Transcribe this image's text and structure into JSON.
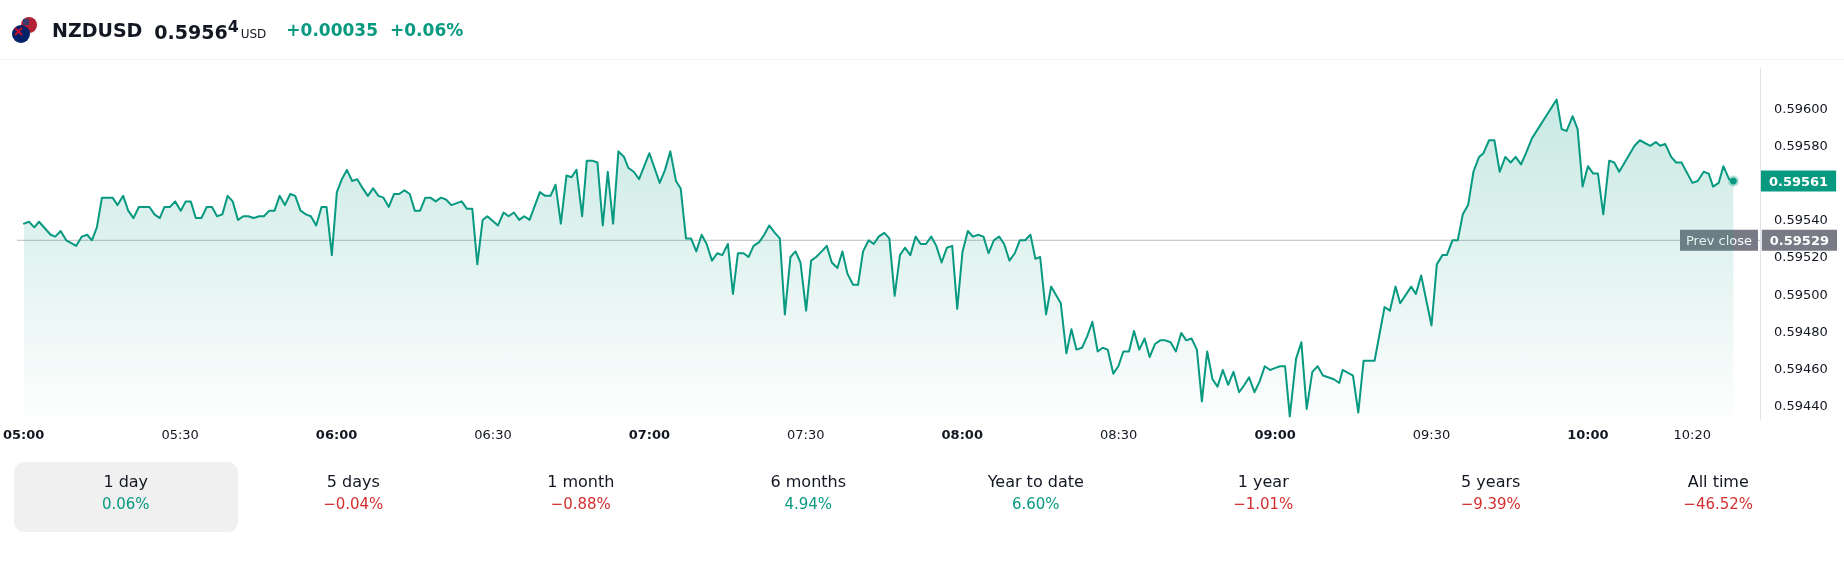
{
  "chart_data": {
    "type": "area",
    "title": "NZDUSD",
    "annotations": [
      {
        "text": "0.59561",
        "x": 10.465,
        "y": 0.59561
      },
      "0.59529",
      "0.5956$^{4}$",
      "USD",
      "+0.00035",
      "+0.06%",
      "1 day",
      "0.06%",
      "5 days",
      "−0.04%",
      "1 month",
      "−0.88%",
      "6 months",
      "4.94%",
      "Year to date",
      "6.60%",
      "1 year",
      "−1.01%",
      "5 years",
      "−9.39%",
      "All time",
      "−46.52%"
    ],
    "xlim": [
      4.98,
      10.55
    ],
    "xticks": [
      {
        "value": 5,
        "label": "05:00"
      },
      {
        "value": 5.5,
        "label": "05:30"
      },
      {
        "value": 6,
        "label": "06:00"
      },
      {
        "value": 6.5,
        "label": "06:30"
      },
      {
        "value": 7,
        "label": "07:00"
      },
      {
        "value": 7.5,
        "label": "07:30"
      },
      {
        "value": 8,
        "label": "08:00"
      },
      {
        "value": 8.5,
        "label": "08:30"
      },
      {
        "value": 9,
        "label": "09:00"
      },
      {
        "value": 9.5,
        "label": "09:30"
      },
      {
        "value": 10,
        "label": "10:00"
      },
      {
        "value": 10.3333,
        "label": "10:20"
      }
    ],
    "ylim": [
      0.59432,
      0.59622
    ],
    "yticks": [
      {
        "value": 0.5944,
        "label": "0.59440"
      },
      {
        "value": 0.5946,
        "label": "0.59460"
      },
      {
        "value": 0.5948,
        "label": "0.59480"
      },
      {
        "value": 0.595,
        "label": "0.59500"
      },
      {
        "value": 0.5952,
        "label": "0.59520"
      },
      {
        "value": 0.5954,
        "label": "0.59540"
      },
      {
        "value": 0.5958,
        "label": "0.59580"
      },
      {
        "value": 0.596,
        "label": "0.59600"
      }
    ],
    "grid": false,
    "ref_lines": [
      {
        "axis": "y",
        "value": 0.59529,
        "label": "Prev close",
        "color": "#787b86",
        "line_style": "dotted"
      }
    ],
    "series": [
      {
        "color": "#089981",
        "x": [
          5.001,
          5.017,
          5.034,
          5.049,
          5.086,
          5.101,
          5.118,
          5.136,
          5.168,
          5.186,
          5.203,
          5.218,
          5.234,
          5.25,
          5.268,
          5.284,
          5.3,
          5.318,
          5.334,
          5.351,
          5.368,
          5.386,
          5.402,
          5.418,
          5.435,
          5.45,
          5.468,
          5.484,
          5.502,
          5.518,
          5.534,
          5.55,
          5.568,
          5.585,
          5.602,
          5.618,
          5.635,
          5.652,
          5.668,
          5.685,
          5.702,
          5.718,
          5.735,
          5.752,
          5.768,
          5.785,
          5.802,
          5.818,
          5.835,
          5.852,
          5.868,
          5.885,
          5.902,
          5.918,
          5.935,
          5.952,
          5.968,
          5.985,
          6.001,
          6.017,
          6.033,
          6.05,
          6.066,
          6.084,
          6.1,
          6.117,
          6.134,
          6.15,
          6.167,
          6.184,
          6.2,
          6.217,
          6.234,
          6.25,
          6.267,
          6.284,
          6.3,
          6.317,
          6.334,
          6.35,
          6.367,
          6.4,
          6.417,
          6.434,
          6.45,
          6.467,
          6.482,
          6.516,
          6.534,
          6.55,
          6.567,
          6.584,
          6.6,
          6.617,
          6.65,
          6.667,
          6.684,
          6.7,
          6.717,
          6.735,
          6.751,
          6.767,
          6.785,
          6.8,
          6.817,
          6.834,
          6.851,
          6.867,
          6.884,
          6.901,
          6.919,
          6.933,
          6.95,
          6.967,
          7,
          7.033,
          7.05,
          7.067,
          7.085,
          7.1,
          7.117,
          7.133,
          7.15,
          7.167,
          7.183,
          7.2,
          7.217,
          7.233,
          7.251,
          7.267,
          7.283,
          7.301,
          7.317,
          7.333,
          7.351,
          7.367,
          7.383,
          7.401,
          7.417,
          7.433,
          7.451,
          7.467,
          7.483,
          7.501,
          7.517,
          7.533,
          7.551,
          7.567,
          7.583,
          7.601,
          7.617,
          7.633,
          7.651,
          7.667,
          7.683,
          7.701,
          7.717,
          7.733,
          7.751,
          7.767,
          7.784,
          7.801,
          7.817,
          7.834,
          7.851,
          7.867,
          7.884,
          7.901,
          7.917,
          7.934,
          7.951,
          7.968,
          7.984,
          8.001,
          8.018,
          8.034,
          8.051,
          8.068,
          8.084,
          8.101,
          8.118,
          8.134,
          8.151,
          8.168,
          8.184,
          8.201,
          8.218,
          8.234,
          8.249,
          8.268,
          8.284,
          8.315,
          8.333,
          8.349,
          8.365,
          8.383,
          8.399,
          8.416,
          8.433,
          8.449,
          8.465,
          8.483,
          8.499,
          8.515,
          8.533,
          8.549,
          8.566,
          8.583,
          8.599,
          8.616,
          8.633,
          8.649,
          8.666,
          8.683,
          8.7,
          8.716,
          8.733,
          8.75,
          8.766,
          8.783,
          8.8,
          8.816,
          8.833,
          8.85,
          8.867,
          8.885,
          8.902,
          8.917,
          8.934,
          8.951,
          8.967,
          8.984,
          8.999,
          9.016,
          9.032,
          9.047,
          9.067,
          9.084,
          9.101,
          9.119,
          9.136,
          9.153,
          9.188,
          9.205,
          9.216,
          9.249,
          9.266,
          9.283,
          9.318,
          9.35,
          9.367,
          9.385,
          9.4,
          9.435,
          9.45,
          9.467,
          9.5,
          9.517,
          9.535,
          9.549,
          9.567,
          9.584,
          9.6,
          9.617,
          9.634,
          9.652,
          9.666,
          9.684,
          9.701,
          9.718,
          9.736,
          9.753,
          9.769,
          9.786,
          9.802,
          9.821,
          9.9,
          9.916,
          9.932,
          9.951,
          9.967,
          9.983,
          10,
          10.017,
          10.032,
          10.049,
          10.068,
          10.084,
          10.1,
          10.149,
          10.166,
          10.199,
          10.217,
          10.231,
          10.247,
          10.266,
          10.282,
          10.299,
          10.334,
          10.351,
          10.37,
          10.386,
          10.4,
          10.418,
          10.433,
          10.451,
          10.465
        ],
        "values": [
          0.59538,
          0.59539,
          0.59536,
          0.59539,
          0.59532,
          0.59531,
          0.59534,
          0.59529,
          0.59526,
          0.59531,
          0.59532,
          0.59529,
          0.59536,
          0.59552,
          0.59552,
          0.59552,
          0.59548,
          0.59553,
          0.59545,
          0.59541,
          0.59547,
          0.59547,
          0.59547,
          0.59543,
          0.59541,
          0.59547,
          0.59547,
          0.5955,
          0.59545,
          0.5955,
          0.5955,
          0.59541,
          0.59541,
          0.59547,
          0.59547,
          0.59542,
          0.59543,
          0.59553,
          0.5955,
          0.5954,
          0.59542,
          0.59542,
          0.59541,
          0.59542,
          0.59542,
          0.59545,
          0.59545,
          0.59553,
          0.59548,
          0.59554,
          0.59553,
          0.59545,
          0.59543,
          0.59542,
          0.59537,
          0.59547,
          0.59547,
          0.59521,
          0.59555,
          0.59562,
          0.59567,
          0.59561,
          0.59562,
          0.59557,
          0.59553,
          0.59557,
          0.59553,
          0.59552,
          0.59547,
          0.59554,
          0.59554,
          0.59556,
          0.59554,
          0.59545,
          0.59545,
          0.59552,
          0.59552,
          0.5955,
          0.59552,
          0.59551,
          0.59548,
          0.5955,
          0.59546,
          0.59546,
          0.59516,
          0.5954,
          0.59542,
          0.59537,
          0.59544,
          0.59542,
          0.59544,
          0.5954,
          0.59542,
          0.5954,
          0.59555,
          0.59553,
          0.59553,
          0.59559,
          0.59538,
          0.59564,
          0.59563,
          0.59567,
          0.59542,
          0.59572,
          0.59572,
          0.59571,
          0.59537,
          0.59566,
          0.59538,
          0.59577,
          0.59574,
          0.59568,
          0.59566,
          0.59562,
          0.59576,
          0.5956,
          0.59567,
          0.59577,
          0.59561,
          0.59557,
          0.5953,
          0.5953,
          0.59523,
          0.59532,
          0.59527,
          0.59518,
          0.59522,
          0.59521,
          0.59527,
          0.595,
          0.59522,
          0.59522,
          0.5952,
          0.59526,
          0.59528,
          0.59532,
          0.59537,
          0.59533,
          0.5953,
          0.59489,
          0.5952,
          0.59523,
          0.59517,
          0.59491,
          0.59518,
          0.5952,
          0.59523,
          0.59526,
          0.59517,
          0.59514,
          0.59523,
          0.59511,
          0.59505,
          0.59505,
          0.59523,
          0.59529,
          0.59527,
          0.59531,
          0.59533,
          0.5953,
          0.59499,
          0.59521,
          0.59525,
          0.59521,
          0.59531,
          0.59527,
          0.59527,
          0.59531,
          0.59526,
          0.59517,
          0.59525,
          0.59526,
          0.59492,
          0.59523,
          0.59534,
          0.59531,
          0.59532,
          0.59531,
          0.59522,
          0.59529,
          0.59531,
          0.59527,
          0.59518,
          0.59522,
          0.59529,
          0.59529,
          0.59532,
          0.59519,
          0.5952,
          0.59489,
          0.59504,
          0.59495,
          0.59468,
          0.59481,
          0.5947,
          0.59471,
          0.59477,
          0.59485,
          0.59469,
          0.59471,
          0.5947,
          0.59457,
          0.59461,
          0.59469,
          0.59469,
          0.5948,
          0.5947,
          0.59476,
          0.59466,
          0.59473,
          0.59475,
          0.59475,
          0.59474,
          0.59469,
          0.59479,
          0.59475,
          0.59476,
          0.5947,
          0.59442,
          0.59469,
          0.59454,
          0.5945,
          0.59459,
          0.59451,
          0.59458,
          0.59447,
          0.59451,
          0.59455,
          0.59447,
          0.59453,
          0.59461,
          0.59459,
          0.5946,
          0.59461,
          0.59461,
          0.59434,
          0.59465,
          0.59474,
          0.59438,
          0.59458,
          0.59461,
          0.59456,
          0.59454,
          0.59452,
          0.59459,
          0.59456,
          0.59436,
          0.59464,
          0.59464,
          0.59493,
          0.59491,
          0.59504,
          0.59495,
          0.59504,
          0.595,
          0.5951,
          0.59483,
          0.59516,
          0.59521,
          0.59521,
          0.59529,
          0.59529,
          0.59543,
          0.59548,
          0.59566,
          0.59574,
          0.59576,
          0.59583,
          0.59583,
          0.59566,
          0.59574,
          0.59571,
          0.59574,
          0.5957,
          0.59576,
          0.59584,
          0.59605,
          0.59589,
          0.59588,
          0.59596,
          0.59589,
          0.59558,
          0.59569,
          0.59565,
          0.59565,
          0.59543,
          0.59572,
          0.59571,
          0.59566,
          0.5958,
          0.59583,
          0.5958,
          0.59582,
          0.5958,
          0.59581,
          0.59574,
          0.59571,
          0.59571,
          0.5956,
          0.59561,
          0.59566,
          0.59565,
          0.59558,
          0.5956,
          0.59569,
          0.59562,
          0.59561
        ]
      }
    ]
  }
}
